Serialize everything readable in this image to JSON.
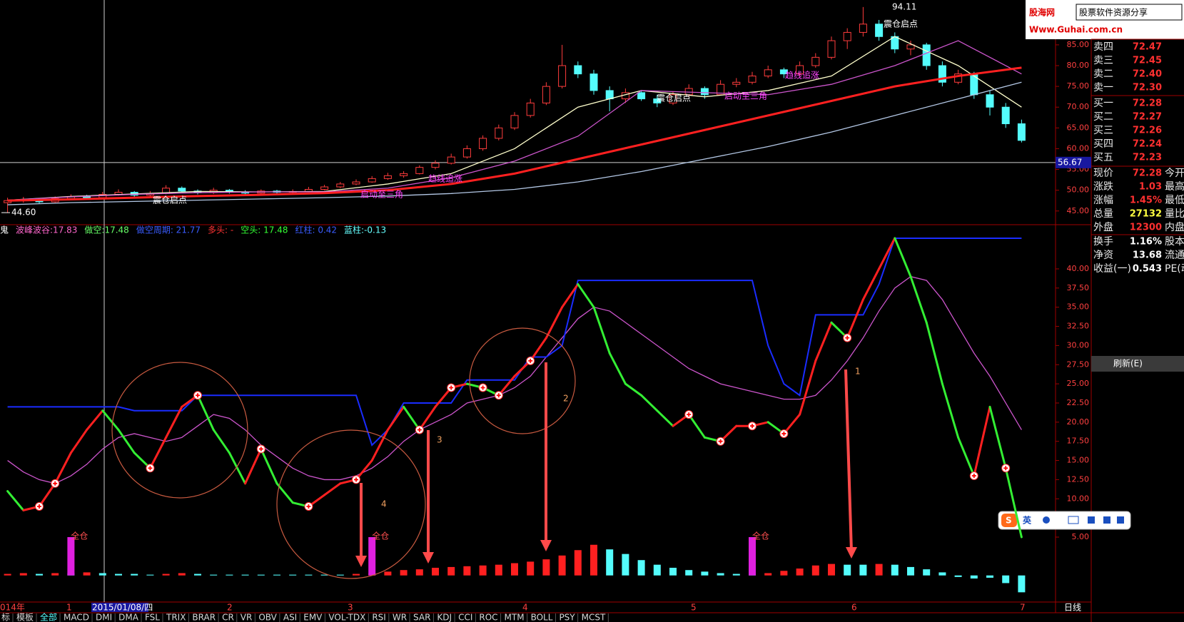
{
  "logo": {
    "brand": "股海网",
    "slogan": "股票软件资源分享",
    "url": "Www.Guhai.com.cn"
  },
  "price_chart": {
    "type": "candlestick",
    "ylim": [
      41.7,
      95.8
    ],
    "yticks": [
      {
        "value": 45,
        "label": "45.00"
      },
      {
        "value": 50,
        "label": "50.00"
      },
      {
        "value": 55,
        "label": "55.00"
      },
      {
        "value": 60,
        "label": "60.00"
      },
      {
        "value": 65,
        "label": "65.00"
      },
      {
        "value": 70,
        "label": "70.00"
      },
      {
        "value": 75,
        "label": "75.00"
      },
      {
        "value": 80,
        "label": "80.00"
      },
      {
        "value": 85,
        "label": "85.00"
      }
    ],
    "up_color": "#ff3c3c",
    "down_color": "#54fcfc",
    "candles": [
      [
        47.0,
        48.2,
        44.6,
        47.5
      ],
      [
        47.5,
        48.4,
        47.0,
        47.8
      ],
      [
        47.8,
        48.1,
        46.8,
        47.2
      ],
      [
        47.2,
        48.5,
        47.0,
        48.0
      ],
      [
        48.0,
        49.0,
        47.6,
        48.5
      ],
      [
        48.5,
        48.9,
        47.8,
        48.2
      ],
      [
        48.2,
        49.6,
        48.0,
        49.0
      ],
      [
        49.0,
        50.2,
        48.7,
        49.5
      ],
      [
        49.5,
        49.8,
        48.4,
        48.8
      ],
      [
        48.8,
        49.8,
        48.5,
        49.2
      ],
      [
        49.2,
        51.2,
        49.0,
        50.5
      ],
      [
        50.5,
        50.9,
        49.5,
        49.8
      ],
      [
        49.8,
        50.2,
        49.0,
        49.4
      ],
      [
        49.4,
        50.6,
        49.1,
        50.0
      ],
      [
        50.0,
        50.3,
        49.2,
        49.6
      ],
      [
        49.6,
        50.0,
        48.9,
        49.3
      ],
      [
        49.3,
        50.2,
        49.0,
        49.8
      ],
      [
        49.8,
        50.1,
        49.1,
        49.5
      ],
      [
        49.5,
        50.2,
        49.2,
        49.7
      ],
      [
        49.7,
        50.8,
        49.5,
        50.2
      ],
      [
        50.2,
        51.3,
        50.0,
        50.8
      ],
      [
        50.8,
        52.0,
        50.5,
        51.5
      ],
      [
        51.5,
        52.6,
        51.2,
        52.0
      ],
      [
        52.0,
        53.4,
        51.8,
        52.8
      ],
      [
        52.8,
        54.2,
        52.5,
        53.5
      ],
      [
        53.5,
        54.6,
        53.0,
        54.0
      ],
      [
        54.0,
        56.0,
        53.8,
        55.5
      ],
      [
        55.5,
        57.2,
        55.0,
        56.5
      ],
      [
        56.5,
        58.8,
        56.2,
        58.0
      ],
      [
        58.0,
        60.8,
        57.6,
        60.0
      ],
      [
        60.0,
        63.2,
        59.5,
        62.5
      ],
      [
        62.5,
        65.8,
        62.0,
        65.0
      ],
      [
        65.0,
        68.8,
        64.5,
        68.0
      ],
      [
        68.0,
        72.0,
        67.5,
        71.0
      ],
      [
        71.0,
        76.0,
        70.5,
        75.0
      ],
      [
        75.0,
        85.0,
        74.5,
        80.0
      ],
      [
        80.0,
        81.0,
        77.0,
        78.0
      ],
      [
        78.0,
        79.0,
        73.0,
        74.0
      ],
      [
        74.0,
        75.0,
        69.0,
        72.0
      ],
      [
        72.0,
        74.5,
        71.0,
        73.5
      ],
      [
        73.5,
        74.0,
        71.5,
        72.0
      ],
      [
        72.0,
        73.0,
        70.0,
        71.0
      ],
      [
        71.0,
        73.8,
        70.5,
        73.0
      ],
      [
        73.0,
        75.5,
        72.5,
        74.5
      ],
      [
        74.5,
        75.0,
        72.0,
        73.0
      ],
      [
        73.0,
        76.5,
        72.8,
        75.5
      ],
      [
        75.5,
        77.0,
        74.8,
        76.0
      ],
      [
        76.0,
        78.5,
        75.5,
        77.5
      ],
      [
        77.5,
        80.0,
        77.0,
        79.0
      ],
      [
        79.0,
        79.5,
        77.0,
        78.0
      ],
      [
        78.0,
        81.0,
        77.5,
        80.0
      ],
      [
        80.0,
        83.0,
        79.5,
        82.0
      ],
      [
        82.0,
        87.0,
        81.5,
        86.0
      ],
      [
        86.0,
        89.0,
        84.0,
        88.0
      ],
      [
        88.0,
        94.11,
        87.0,
        90.0
      ],
      [
        90.0,
        91.0,
        86.0,
        87.0
      ],
      [
        87.0,
        88.0,
        83.0,
        84.0
      ],
      [
        84.0,
        86.0,
        82.5,
        85.0
      ],
      [
        85.0,
        85.5,
        79.0,
        80.0
      ],
      [
        80.0,
        81.0,
        75.0,
        76.0
      ],
      [
        76.0,
        79.0,
        75.5,
        78.0
      ],
      [
        78.0,
        78.5,
        72.0,
        73.0
      ],
      [
        73.0,
        74.0,
        68.0,
        70.0
      ],
      [
        70.0,
        71.0,
        65.0,
        66.0
      ],
      [
        66.0,
        67.0,
        61.5,
        62.0
      ]
    ],
    "ma": [
      {
        "color": "#ffffcc",
        "x": [
          0,
          4,
          8,
          12,
          16,
          20,
          24,
          28,
          32,
          36,
          40,
          44,
          48,
          52,
          56,
          60,
          64
        ],
        "values": [
          47.6,
          48.5,
          49.1,
          49.7,
          49.6,
          49.7,
          51.5,
          54.0,
          60.0,
          70.0,
          74.0,
          72.5,
          74.0,
          77.5,
          87.0,
          80.0,
          70.0
        ]
      },
      {
        "color": "#cc55cc",
        "x": [
          0,
          4,
          8,
          12,
          16,
          20,
          24,
          28,
          32,
          36,
          40,
          44,
          48,
          52,
          56,
          60,
          64
        ],
        "values": [
          47.6,
          48.4,
          49.0,
          49.4,
          49.6,
          49.6,
          50.5,
          53.0,
          57.0,
          63.0,
          74.0,
          73.5,
          73.0,
          75.5,
          80.0,
          86.0,
          78.0
        ]
      },
      {
        "color": "#ff2020",
        "x": [
          0,
          4,
          8,
          12,
          16,
          20,
          24,
          28,
          32,
          36,
          40,
          44,
          48,
          52,
          56,
          60,
          64
        ],
        "values": [
          47.5,
          47.8,
          48.2,
          48.6,
          48.9,
          49.3,
          50.0,
          51.5,
          54.0,
          57.5,
          61.0,
          64.5,
          68.0,
          71.5,
          75.0,
          77.5,
          79.5
        ]
      },
      {
        "color": "#b4c8e6",
        "x": [
          0,
          4,
          8,
          12,
          16,
          20,
          24,
          28,
          32,
          36,
          40,
          44,
          48,
          52,
          56,
          60,
          64
        ],
        "values": [
          46.5,
          47.0,
          47.3,
          47.6,
          47.9,
          48.2,
          48.6,
          49.2,
          50.2,
          52.0,
          54.5,
          57.5,
          60.5,
          64.0,
          68.0,
          72.0,
          76.0
        ]
      }
    ],
    "high_label": {
      "value": 94.11,
      "label": "94.11"
    },
    "low_label": {
      "value": 44.6,
      "label": "44.60"
    },
    "crosshair": {
      "value": 56.67,
      "label": "56.67"
    },
    "labels": [
      {
        "text": "震仓启点",
        "color": "#ffffff"
      },
      {
        "text": "震仓启点",
        "color": "#ffffff"
      },
      {
        "text": "震仓启点",
        "color": "#ffffff"
      },
      {
        "text": "趋线追涨",
        "color": "#ff44ff"
      },
      {
        "text": "启动至三角",
        "color": "#ff44ff"
      },
      {
        "text": "趋线追涨",
        "color": "#ff44ff"
      },
      {
        "text": "启动至三角",
        "color": "#ff44ff"
      }
    ]
  },
  "indicator": {
    "type": "line",
    "legend": [
      {
        "text": "鬼",
        "color": "#ffffff"
      },
      {
        "text": "波峰波谷:17.83",
        "color": "#ff66cc"
      },
      {
        "text": "做空:17.48",
        "color": "#66ff66"
      },
      {
        "text": "做空周期: 21.77",
        "color": "#3a5cff"
      },
      {
        "text": "多头: -",
        "color": "#ff3333"
      },
      {
        "text": "空头: 17.48",
        "color": "#33ff33"
      },
      {
        "text": "红柱: 0.42",
        "color": "#3a5cff"
      },
      {
        "text": "蓝柱:-0.13",
        "color": "#66ffff"
      }
    ],
    "ylim": [
      -3.47,
      44.37
    ],
    "yticks": [
      {
        "value": 5,
        "label": "5.00"
      },
      {
        "value": 10,
        "label": "10.00"
      },
      {
        "value": 12.5,
        "label": "12.50"
      },
      {
        "value": 15,
        "label": "15.00"
      },
      {
        "value": 17.5,
        "label": "17.50"
      },
      {
        "value": 20,
        "label": "20.00"
      },
      {
        "value": 22.5,
        "label": "22.50"
      },
      {
        "value": 25,
        "label": "25.00"
      },
      {
        "value": 27.5,
        "label": "27.50"
      },
      {
        "value": 30,
        "label": "30.00"
      },
      {
        "value": 32.5,
        "label": "32.50"
      },
      {
        "value": 35,
        "label": "35.00"
      },
      {
        "value": 37.5,
        "label": "37.50"
      },
      {
        "value": 40,
        "label": "40.00"
      }
    ],
    "main": [
      11,
      8.5,
      9,
      12,
      16,
      19,
      21.5,
      19,
      16,
      14,
      18,
      22,
      23.5,
      19,
      16,
      12,
      16.5,
      12,
      9.5,
      9,
      10.5,
      12,
      12.5,
      15,
      19,
      22,
      19,
      22,
      24.5,
      25,
      24.5,
      23.5,
      26,
      28,
      31,
      35,
      38,
      35,
      29,
      25,
      23.5,
      21.5,
      19.5,
      21,
      18,
      17.5,
      19.5,
      19.5,
      20,
      18.5,
      21,
      28,
      33,
      31,
      36,
      40,
      44,
      39,
      33,
      25,
      18,
      13,
      22,
      14,
      5
    ],
    "up_color": "#ff2020",
    "down_color": "#33ee33",
    "short": {
      "color": "#1a2cff",
      "values": [
        22,
        22,
        22,
        22,
        22,
        22,
        22,
        22,
        21.5,
        21.5,
        21.5,
        21.5,
        23.5,
        23.5,
        23.5,
        23.5,
        23.5,
        23.5,
        23.5,
        23.5,
        23.5,
        23.5,
        23.5,
        17,
        19,
        22.5,
        22.5,
        22.5,
        22.5,
        25.5,
        25.5,
        25.5,
        25.5,
        28.5,
        28.5,
        30,
        38.5,
        38.5,
        38.5,
        38.5,
        38.5,
        38.5,
        38.5,
        38.5,
        38.5,
        38.5,
        38.5,
        38.5,
        30,
        25,
        23.5,
        34,
        34,
        34,
        34,
        38,
        44,
        44,
        44,
        44,
        44,
        44,
        44,
        44,
        44
      ]
    },
    "avg": {
      "color": "#cc55cc",
      "values": [
        15,
        13.5,
        12.5,
        12,
        13,
        14.5,
        16.5,
        18,
        18.5,
        18,
        17.5,
        18,
        19.5,
        21,
        20.5,
        19,
        17,
        15.5,
        14,
        13,
        12.5,
        12.5,
        13,
        14,
        15.5,
        17.5,
        19,
        20,
        21,
        22.5,
        23,
        23.5,
        24.5,
        26,
        28.5,
        31,
        33.5,
        35,
        34.5,
        33,
        31.5,
        30,
        28.5,
        27,
        26,
        25,
        24.5,
        24,
        23.5,
        23,
        23,
        23.5,
        25.5,
        28,
        31,
        34.5,
        37.5,
        39,
        38.5,
        36,
        32.5,
        29,
        26,
        22.5,
        19
      ]
    },
    "hist": [
      0.2,
      0.3,
      0.2,
      0.3,
      0.3,
      0.4,
      0.3,
      0.2,
      0.2,
      0.1,
      0.2,
      0.3,
      0.2,
      0.1,
      0.1,
      0.1,
      0.1,
      0.1,
      0.1,
      0.1,
      0.1,
      0.1,
      0.2,
      0.3,
      0.5,
      0.7,
      0.8,
      1.0,
      1.1,
      1.2,
      1.3,
      1.4,
      1.6,
      1.8,
      2.1,
      2.6,
      3.3,
      4.0,
      3.4,
      2.8,
      2.0,
      1.4,
      1.0,
      0.7,
      0.5,
      0.3,
      0.2,
      0.2,
      0.3,
      0.6,
      0.9,
      1.3,
      1.5,
      1.4,
      1.4,
      1.5,
      1.4,
      1.1,
      0.8,
      0.4,
      -0.2,
      -0.4,
      -0.3,
      -1.0,
      -2.2
    ],
    "hist_colors": [
      "#ff2020",
      "#54fcfc"
    ],
    "marker_indices": [
      2,
      3,
      9,
      12,
      16,
      19,
      22,
      26,
      28,
      30,
      31,
      33,
      43,
      45,
      47,
      49,
      53,
      61,
      63
    ],
    "signals": [
      {
        "index": 4,
        "value": 5,
        "label": "全仓"
      },
      {
        "index": 23,
        "value": 5,
        "label": "全仓"
      },
      {
        "index": 47,
        "value": 5,
        "label": "全仓"
      }
    ],
    "annotations": [
      "1",
      "2",
      "3",
      "4"
    ]
  },
  "quote_panel": {
    "asks": [
      [
        "卖四",
        "72.47"
      ],
      [
        "卖三",
        "72.45"
      ],
      [
        "卖二",
        "72.40"
      ],
      [
        "卖一",
        "72.30"
      ]
    ],
    "bids": [
      [
        "买一",
        "72.28"
      ],
      [
        "买二",
        "72.27"
      ],
      [
        "买三",
        "72.26"
      ],
      [
        "买四",
        "72.24"
      ],
      [
        "买五",
        "72.23"
      ]
    ],
    "stats": [
      [
        "现价",
        "72.28",
        "今开"
      ],
      [
        "涨跌",
        "1.03",
        "最高"
      ],
      [
        "涨幅",
        "1.45%",
        "最低"
      ],
      [
        "总量",
        "27132",
        "量比"
      ],
      [
        "外盘",
        "12300",
        "内盘"
      ]
    ],
    "stats2": [
      [
        "换手",
        "1.16%",
        "股本"
      ],
      [
        "净资",
        "13.68",
        "流通"
      ],
      [
        "收益(一)",
        "0.543",
        "PE(动"
      ]
    ],
    "button": "刷新(E)"
  },
  "ime": "英",
  "date_axis": {
    "labels": [
      "014年",
      "1",
      "2015/01/08/四",
      "2",
      "3",
      "4",
      "5",
      "6",
      "7"
    ],
    "period": "日线"
  },
  "tabs": [
    "标",
    "模板",
    "全部",
    "MACD",
    "DMI",
    "DMA",
    "FSL",
    "TRIX",
    "BRAR",
    "CR",
    "VR",
    "OBV",
    "ASI",
    "EMV",
    "VOL-TDX",
    "RSI",
    "WR",
    "SAR",
    "KDJ",
    "CCI",
    "ROC",
    "MTM",
    "BOLL",
    "PSY",
    "MCST"
  ]
}
